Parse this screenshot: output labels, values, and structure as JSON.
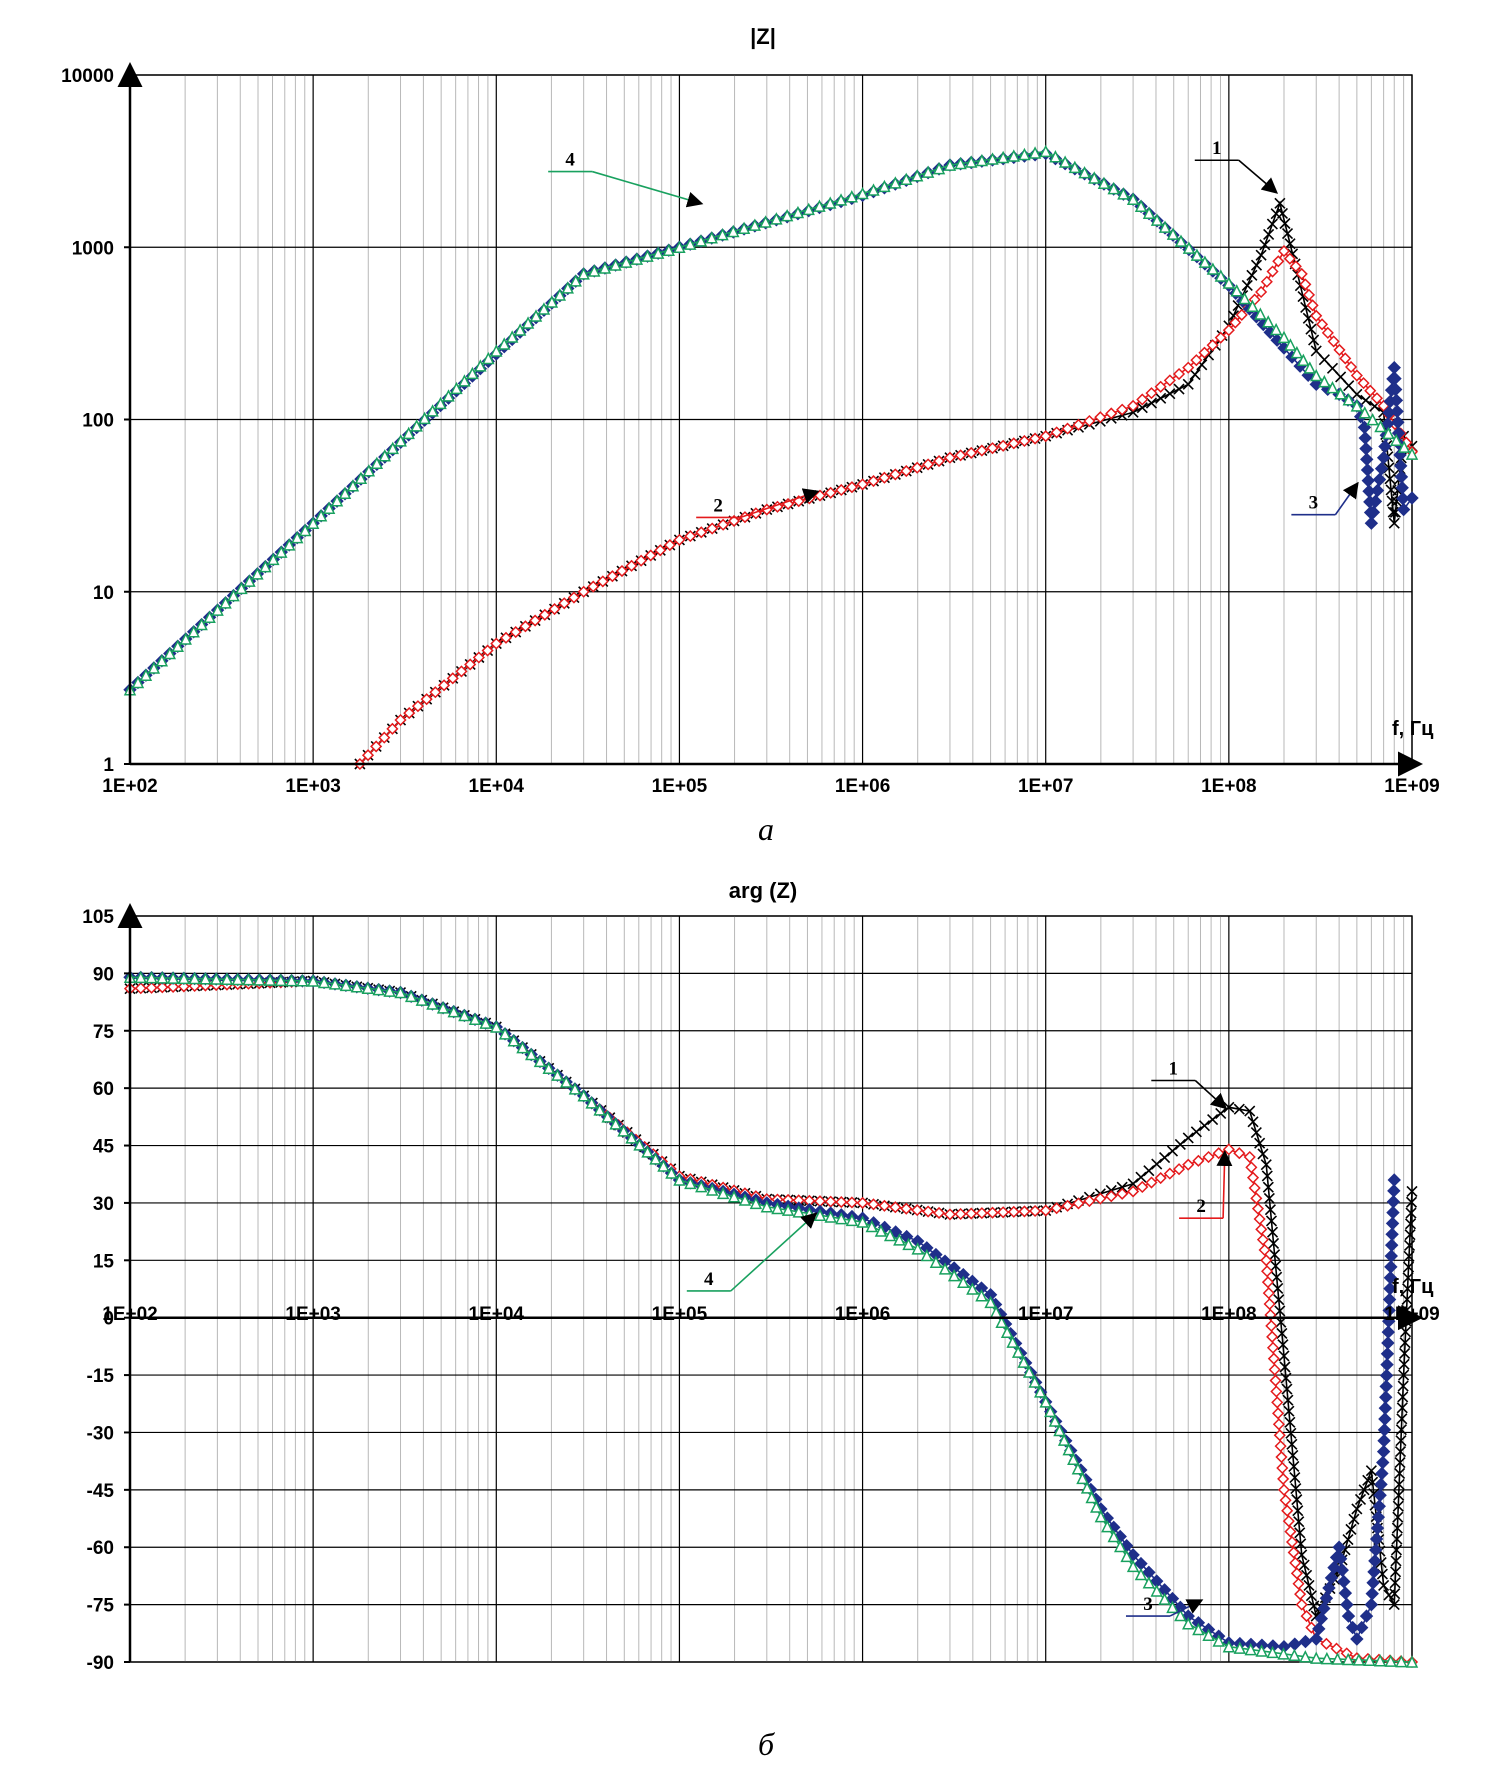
{
  "chart_data": [
    {
      "type": "line",
      "title": "|Z|",
      "caption": "a",
      "x_axis_label": "f, Гц",
      "x_tick_labels": [
        "1E+02",
        "1E+03",
        "1E+04",
        "1E+05",
        "1E+06",
        "1E+07",
        "1E+08",
        "1E+09"
      ],
      "y_tick_labels": [
        "1",
        "10",
        "100",
        "1000",
        "10000"
      ],
      "x_scale": "log",
      "y_scale": "log",
      "xlim": [
        100,
        1000000000
      ],
      "ylim": [
        1,
        10000
      ],
      "grid": true,
      "series": [
        {
          "name": "1",
          "color": "#000000",
          "marker": "x",
          "x": [
            1800,
            3000,
            10000,
            30000,
            100000,
            300000,
            1000000,
            3000000,
            10000000,
            30000000,
            60000000,
            100000000,
            150000000,
            190000000,
            230000000,
            300000000,
            500000000,
            700000000,
            800000000,
            900000000,
            1000000000
          ],
          "y": [
            1,
            1.8,
            5,
            10,
            20,
            30,
            42,
            60,
            80,
            110,
            160,
            350,
            900,
            1800,
            800,
            250,
            140,
            110,
            25,
            80,
            70
          ]
        },
        {
          "name": "2",
          "color": "#e41a1c",
          "marker": "diamond-open",
          "x": [
            1800,
            3000,
            10000,
            30000,
            100000,
            300000,
            1000000,
            3000000,
            10000000,
            30000000,
            60000000,
            100000000,
            150000000,
            200000000,
            250000000,
            300000000,
            500000000,
            700000000,
            1000000000
          ],
          "y": [
            1,
            1.8,
            5,
            10,
            20,
            30,
            42,
            60,
            80,
            120,
            200,
            330,
            550,
            950,
            700,
            400,
            180,
            120,
            65
          ]
        },
        {
          "name": "3",
          "color": "#1f2f8a",
          "marker": "diamond-filled",
          "x": [
            100,
            1000,
            10000,
            30000,
            100000,
            1000000,
            3000000,
            10000000,
            30000000,
            100000000,
            200000000,
            300000000,
            400000000,
            500000000,
            550000000,
            600000000,
            700000000,
            800000000,
            900000000,
            1000000000
          ],
          "y": [
            2.7,
            25,
            240,
            700,
            1000,
            2000,
            3000,
            3500,
            1900,
            600,
            260,
            160,
            140,
            120,
            90,
            25,
            60,
            200,
            30,
            35
          ]
        },
        {
          "name": "4",
          "color": "#19a15f",
          "marker": "triangle-open",
          "x": [
            100,
            1000,
            10000,
            30000,
            100000,
            1000000,
            3000000,
            10000000,
            30000000,
            100000000,
            200000000,
            300000000,
            500000000,
            1000000000
          ],
          "y": [
            2.7,
            25,
            250,
            700,
            1000,
            2050,
            3000,
            3600,
            1900,
            620,
            300,
            180,
            120,
            63
          ]
        }
      ],
      "callouts": [
        "1",
        "2",
        "3",
        "4"
      ]
    },
    {
      "type": "line",
      "title": "arg (Z)",
      "caption": "б",
      "x_axis_label": "f, Гц",
      "x_tick_labels": [
        "1E+02",
        "1E+03",
        "1E+04",
        "1E+05",
        "1E+06",
        "1E+07",
        "1E+08",
        "1E+09"
      ],
      "y_tick_labels": [
        "105",
        "90",
        "75",
        "60",
        "45",
        "30",
        "15",
        "0",
        "-15",
        "-30",
        "-45",
        "-60",
        "-75",
        "-90"
      ],
      "x_scale": "log",
      "y_scale": "linear",
      "xlim": [
        100,
        1000000000
      ],
      "ylim": [
        -90,
        105
      ],
      "grid": true,
      "series": [
        {
          "name": "1",
          "color": "#000000",
          "marker": "x",
          "x": [
            100,
            1000,
            3000,
            10000,
            30000,
            100000,
            300000,
            1000000,
            3000000,
            10000000,
            30000000,
            60000000,
            100000000,
            130000000,
            160000000,
            200000000,
            250000000,
            300000000,
            400000000,
            500000000,
            600000000,
            700000000,
            800000000,
            900000000,
            1000000000
          ],
          "y": [
            86,
            88,
            85,
            76,
            58,
            37,
            31,
            30,
            27,
            28,
            35,
            47,
            55,
            54,
            40,
            -10,
            -62,
            -78,
            -66,
            -50,
            -40,
            -70,
            -75,
            -15,
            33
          ]
        },
        {
          "name": "2",
          "color": "#e41a1c",
          "marker": "diamond-open",
          "x": [
            100,
            1000,
            3000,
            10000,
            30000,
            100000,
            300000,
            1000000,
            3000000,
            10000000,
            30000000,
            60000000,
            100000000,
            130000000,
            160000000,
            200000000,
            250000000,
            300000000,
            500000000,
            1000000000
          ],
          "y": [
            86,
            88,
            85,
            76,
            58,
            37,
            31,
            30,
            27,
            28,
            33,
            40,
            44,
            42,
            15,
            -45,
            -75,
            -84,
            -89,
            -90
          ]
        },
        {
          "name": "3",
          "color": "#1f2f8a",
          "marker": "diamond-filled",
          "x": [
            100,
            1000,
            3000,
            10000,
            30000,
            100000,
            300000,
            1000000,
            2000000,
            5000000,
            10000000,
            20000000,
            30000000,
            60000000,
            100000000,
            200000000,
            300000000,
            400000000,
            450000000,
            500000000,
            600000000,
            700000000,
            800000000
          ],
          "y": [
            89,
            88,
            85,
            76,
            58,
            36,
            30,
            26,
            20,
            6,
            -22,
            -50,
            -62,
            -78,
            -85,
            -86,
            -84,
            -60,
            -78,
            -84,
            -75,
            -35,
            36
          ]
        },
        {
          "name": "4",
          "color": "#19a15f",
          "marker": "triangle-open",
          "x": [
            100,
            1000,
            3000,
            10000,
            30000,
            100000,
            300000,
            1000000,
            2000000,
            5000000,
            10000000,
            20000000,
            30000000,
            60000000,
            100000000,
            300000000,
            1000000000
          ],
          "y": [
            89,
            88,
            85,
            76,
            58,
            36,
            29,
            25,
            18,
            4,
            -22,
            -52,
            -65,
            -80,
            -86,
            -89,
            -90
          ]
        }
      ],
      "callouts": [
        "1",
        "2",
        "3",
        "4"
      ]
    }
  ]
}
